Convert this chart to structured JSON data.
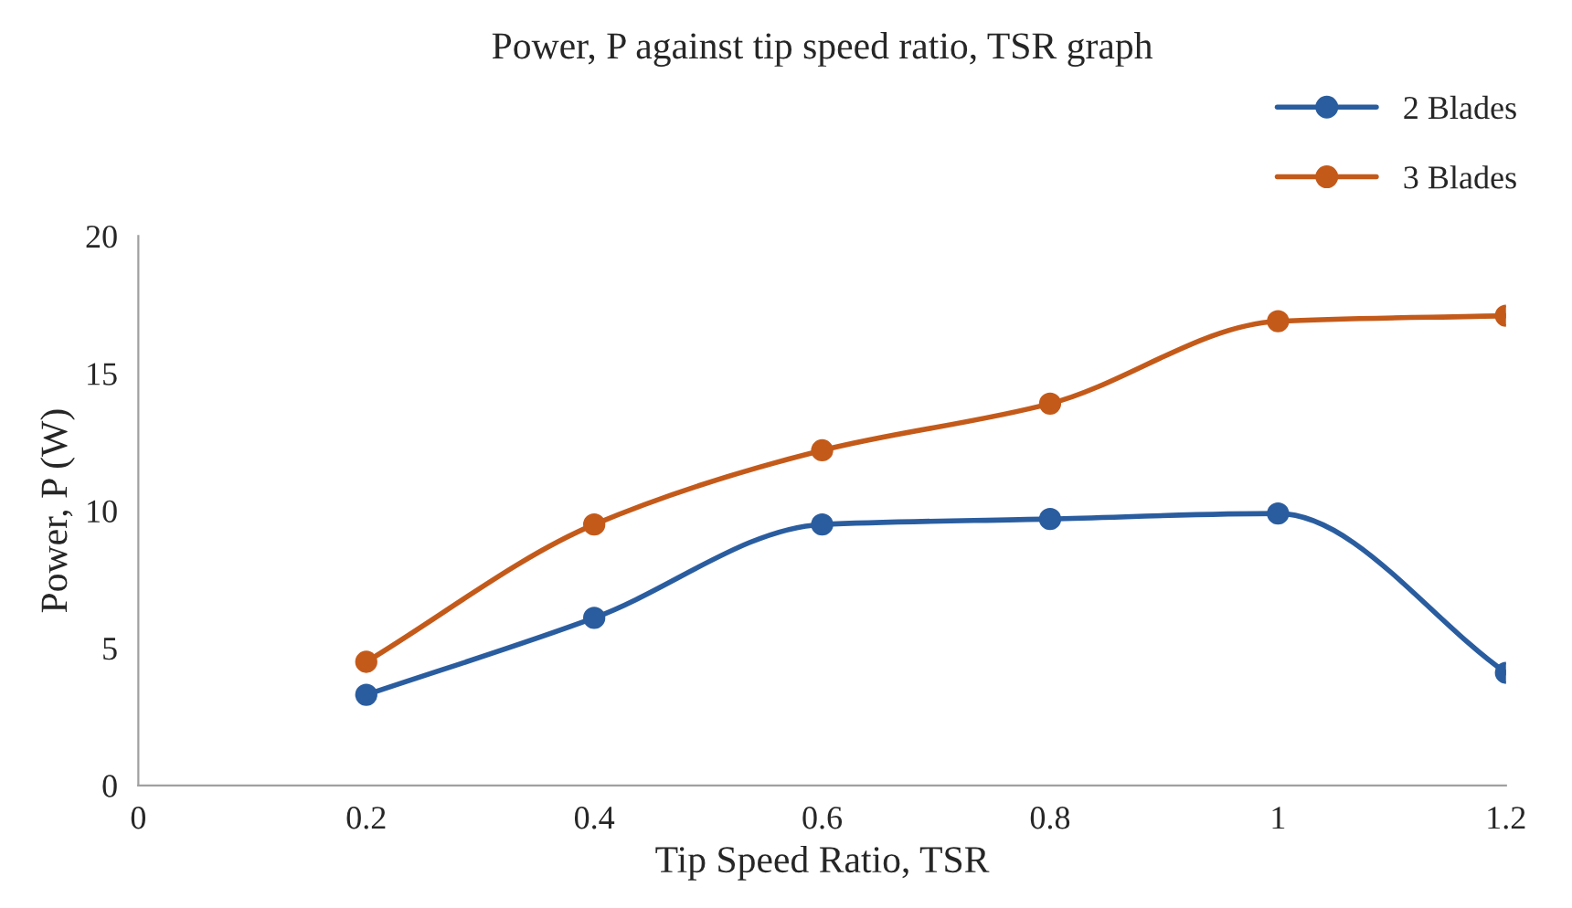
{
  "chart_data": {
    "type": "line",
    "title": "Power, P against tip speed ratio, TSR graph",
    "xlabel": "Tip Speed Ratio, TSR",
    "ylabel": "Power, P (W)",
    "x": [
      0.2,
      0.4,
      0.6,
      0.8,
      1.0,
      1.2
    ],
    "series": [
      {
        "name": "2 Blades",
        "color": "#2a5d9f",
        "values": [
          3.3,
          6.1,
          9.5,
          9.7,
          9.9,
          4.1
        ]
      },
      {
        "name": "3 Blades",
        "color": "#c45a1a",
        "values": [
          4.5,
          9.5,
          12.2,
          13.9,
          16.9,
          17.1
        ]
      }
    ],
    "xlim": [
      0,
      1.2
    ],
    "xticks": [
      0,
      0.2,
      0.4,
      0.6,
      0.8,
      1,
      1.2
    ],
    "ylim": [
      0,
      20
    ],
    "yticks": [
      0,
      5,
      10,
      15,
      20
    ],
    "grid": false,
    "legend": "top right",
    "marker": "circle",
    "line_style": "solid"
  }
}
